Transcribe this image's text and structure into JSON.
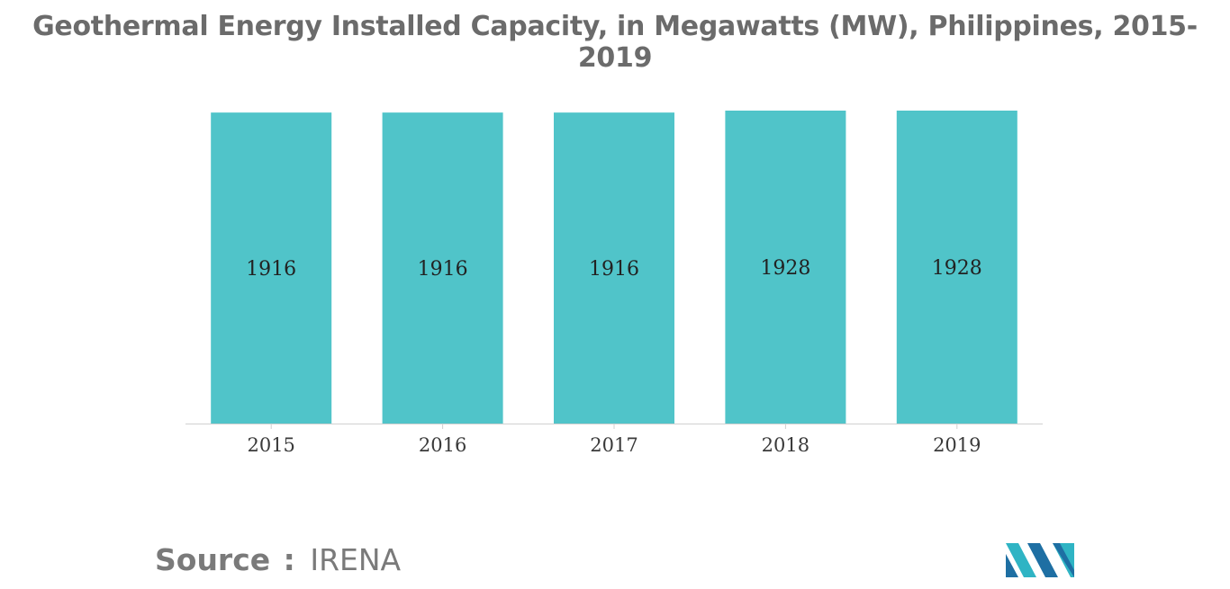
{
  "chart_data": {
    "type": "bar",
    "title": "Geothermal Energy Installed Capacity, in Megawatts (MW), Philippines, 2015-2019",
    "categories": [
      "2015",
      "2016",
      "2017",
      "2018",
      "2019"
    ],
    "values": [
      1916,
      1916,
      1916,
      1928,
      1928
    ],
    "data_labels": [
      "1916",
      "1916",
      "1916",
      "1928",
      "1928"
    ],
    "xlabel": "",
    "ylabel": "",
    "ylim": [
      0,
      1928
    ],
    "grid": false,
    "legend": "none",
    "colors": {
      "bar": "#50c4c9",
      "title": "#6b6b6b",
      "axis": "#d0d0d0"
    }
  },
  "footer": {
    "source_label": "Source",
    "source_separator": ":",
    "source_value": "IRENA"
  },
  "logo": {
    "icon": "mordor-intelligence-logo-icon",
    "colors": [
      "#1e6fa3",
      "#2fb4c4",
      "#5fd3d8"
    ]
  }
}
